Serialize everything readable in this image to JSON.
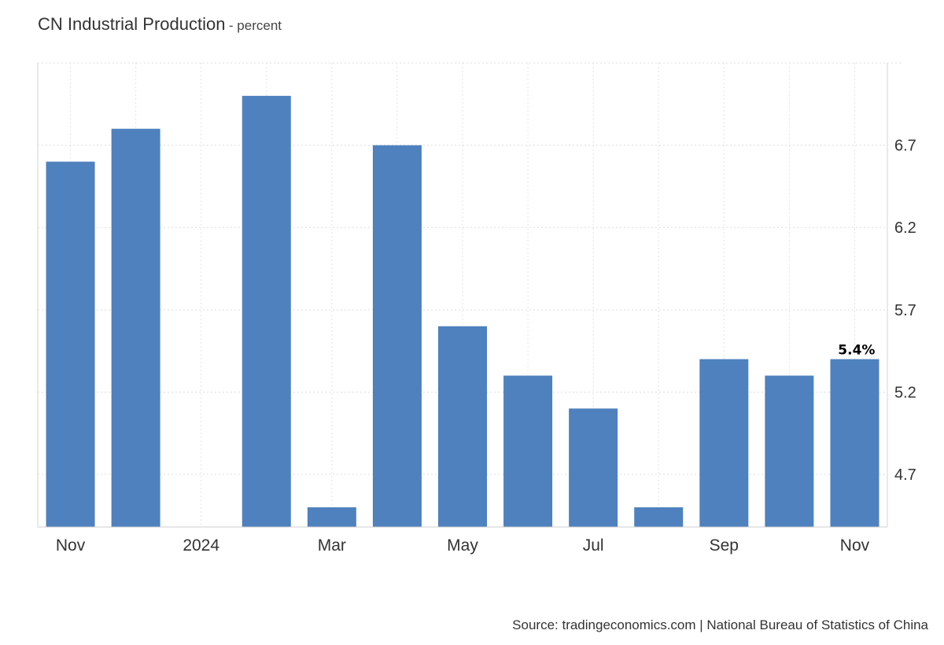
{
  "header": {
    "title": "CN Industrial Production",
    "unit": "percent"
  },
  "footer": {
    "source": "Source: tradingeconomics.com | National Bureau of Statistics of China"
  },
  "chart_data": {
    "type": "bar",
    "title": "CN Industrial Production",
    "subtitle": "percent",
    "categories": [
      "2023-11",
      "2023-12",
      "2024-01",
      "2024-02",
      "2024-03",
      "2024-04",
      "2024-05",
      "2024-06",
      "2024-07",
      "2024-08",
      "2024-09",
      "2024-10",
      "2024-11"
    ],
    "x_tick_labels": [
      {
        "category": "2023-11",
        "label": "Nov"
      },
      {
        "category": "2024-01",
        "label": "2024"
      },
      {
        "category": "2024-03",
        "label": "Mar"
      },
      {
        "category": "2024-05",
        "label": "May"
      },
      {
        "category": "2024-07",
        "label": "Jul"
      },
      {
        "category": "2024-09",
        "label": "Sep"
      },
      {
        "category": "2024-11",
        "label": "Nov"
      }
    ],
    "values": [
      6.6,
      6.8,
      null,
      7.0,
      4.5,
      6.7,
      5.6,
      5.3,
      5.1,
      4.5,
      5.4,
      5.3,
      5.4
    ],
    "y_ticks": [
      4.7,
      5.2,
      5.7,
      6.2,
      6.7
    ],
    "ylim": [
      4.38,
      7.2
    ],
    "y_axis_side": "right",
    "grid": true,
    "last_value_label": "5.4%",
    "bar_color": "#4e81bd",
    "xlabel": "",
    "ylabel": ""
  }
}
